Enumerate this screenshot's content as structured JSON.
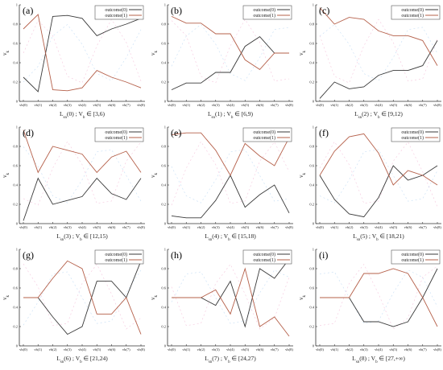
{
  "colors": {
    "outcome0": "#3a3a3a",
    "outcome1": "#b5604a",
    "background_guide": "#f3b8d4",
    "background_guide2": "#b8d6f3"
  },
  "chart_data": [
    {
      "type": "line",
      "panel_label": "(a)",
      "xlabel": "L_sn(0) ; V_b ∈ [3,6)",
      "ylabel": "v_k",
      "categories": [
        "vb(0)",
        "vb(1)",
        "vb(2)",
        "vb(3)",
        "vb(4)",
        "vb(5)",
        "vb(6)",
        "vb(7)",
        "vb(8)"
      ],
      "yticks": [
        "0",
        "0.2",
        "0.4",
        "0.6",
        "0.8",
        "1"
      ],
      "ylim": [
        0,
        1
      ],
      "legend": "top-right",
      "series": [
        {
          "name": "outcome(0)",
          "values": [
            0.25,
            0.1,
            0.88,
            0.89,
            0.86,
            0.68,
            0.75,
            0.8,
            0.86
          ]
        },
        {
          "name": "outcome(1)",
          "values": [
            0.75,
            0.9,
            0.12,
            0.11,
            0.14,
            0.32,
            0.25,
            0.2,
            0.14
          ]
        }
      ]
    },
    {
      "type": "line",
      "panel_label": "(b)",
      "xlabel": "L_sn(1) ; V_b ∈ [6,9)",
      "ylabel": "v_k",
      "categories": [
        "vb(0)",
        "vb(1)",
        "vb(2)",
        "vb(3)",
        "vb(4)",
        "vb(5)",
        "vb(6)",
        "vb(7)",
        "vb(8)"
      ],
      "yticks": [
        "0",
        "0.2",
        "0.4",
        "0.6",
        "0.8",
        "1"
      ],
      "ylim": [
        0,
        1
      ],
      "legend": "top-right",
      "series": [
        {
          "name": "outcome(0)",
          "values": [
            0.12,
            0.19,
            0.19,
            0.3,
            0.3,
            0.57,
            0.67,
            0.5,
            0.5
          ]
        },
        {
          "name": "outcome(1)",
          "values": [
            0.88,
            0.81,
            0.81,
            0.7,
            0.7,
            0.43,
            0.33,
            0.5,
            0.5
          ]
        }
      ]
    },
    {
      "type": "line",
      "panel_label": "(c)",
      "xlabel": "L_sn(2) ; V_b ∈ [9,12)",
      "ylabel": "v_k",
      "categories": [
        "vb(0)",
        "vb(1)",
        "vb(2)",
        "vb(3)",
        "vb(4)",
        "vb(5)",
        "vb(6)",
        "vb(7)",
        "vb(8)"
      ],
      "yticks": [
        "0",
        "0.2",
        "0.4",
        "0.6",
        "0.8",
        "1"
      ],
      "ylim": [
        0,
        1
      ],
      "legend": "top-right",
      "series": [
        {
          "name": "outcome(0)",
          "values": [
            0.03,
            0.2,
            0.13,
            0.15,
            0.27,
            0.32,
            0.32,
            0.37,
            0.63
          ]
        },
        {
          "name": "outcome(1)",
          "values": [
            0.97,
            0.8,
            0.87,
            0.85,
            0.73,
            0.68,
            0.68,
            0.63,
            0.37
          ]
        }
      ]
    },
    {
      "type": "line",
      "panel_label": "(d)",
      "xlabel": "L_sn(3) ; V_b ∈ [12,15)",
      "ylabel": "v_k",
      "categories": [
        "vb(0)",
        "vb(1)",
        "vb(2)",
        "vb(3)",
        "vb(4)",
        "vb(5)",
        "vb(6)",
        "vb(7)",
        "vb(8)"
      ],
      "yticks": [
        "0",
        "0.2",
        "0.4",
        "0.6",
        "0.8",
        "1"
      ],
      "ylim": [
        0,
        1
      ],
      "legend": "top-right",
      "series": [
        {
          "name": "outcome(0)",
          "values": [
            0.03,
            0.47,
            0.2,
            0.24,
            0.28,
            0.47,
            0.31,
            0.25,
            0.47
          ]
        },
        {
          "name": "outcome(1)",
          "values": [
            0.97,
            0.53,
            0.8,
            0.76,
            0.72,
            0.53,
            0.69,
            0.75,
            0.53
          ]
        }
      ]
    },
    {
      "type": "line",
      "panel_label": "(e)",
      "xlabel": "L_sn(4) ; V_b ∈ [15,18)",
      "ylabel": "v_k",
      "categories": [
        "vb(0)",
        "vb(1)",
        "vb(2)",
        "vb(3)",
        "vb(4)",
        "vb(5)",
        "vb(6)",
        "vb(7)",
        "vb(8)"
      ],
      "yticks": [
        "0",
        "0.2",
        "0.4",
        "0.6",
        "0.8",
        "1"
      ],
      "ylim": [
        0,
        1
      ],
      "legend": "top-right",
      "series": [
        {
          "name": "outcome(0)",
          "values": [
            0.08,
            0.06,
            0.06,
            0.24,
            0.5,
            0.17,
            0.3,
            0.4,
            0.11
          ]
        },
        {
          "name": "outcome(1)",
          "values": [
            0.92,
            0.94,
            0.94,
            0.76,
            0.5,
            0.83,
            0.7,
            0.6,
            0.89
          ]
        }
      ]
    },
    {
      "type": "line",
      "panel_label": "(f)",
      "xlabel": "L_sn(5) ; V_b ∈ [18,21)",
      "ylabel": "v_k",
      "categories": [
        "vb(0)",
        "vb(1)",
        "vb(2)",
        "vb(3)",
        "vb(4)",
        "vb(5)",
        "vb(6)",
        "vb(7)",
        "vb(8)"
      ],
      "yticks": [
        "0",
        "0.2",
        "0.4",
        "0.6",
        "0.8",
        "1"
      ],
      "ylim": [
        0,
        1
      ],
      "legend": "top-right",
      "series": [
        {
          "name": "outcome(0)",
          "values": [
            0.5,
            0.25,
            0.1,
            0.07,
            0.27,
            0.6,
            0.45,
            0.5,
            0.6
          ]
        },
        {
          "name": "outcome(1)",
          "values": [
            0.5,
            0.75,
            0.9,
            0.93,
            0.73,
            0.4,
            0.55,
            0.5,
            0.4
          ]
        }
      ]
    },
    {
      "type": "line",
      "panel_label": "(g)",
      "xlabel": "L_sn(6) ; V_b ∈ [21,24)",
      "ylabel": "v_k",
      "categories": [
        "vb(0)",
        "vb(1)",
        "vb(2)",
        "vb(3)",
        "vb(4)",
        "vb(5)",
        "vb(6)",
        "vb(7)",
        "vb(8)"
      ],
      "yticks": [
        "0",
        "0.2",
        "0.4",
        "0.6",
        "0.8",
        "1"
      ],
      "ylim": [
        0,
        1
      ],
      "legend": "top-right",
      "series": [
        {
          "name": "outcome(0)",
          "values": [
            0.5,
            0.5,
            0.3,
            0.12,
            0.2,
            0.67,
            0.67,
            0.5,
            0.88
          ]
        },
        {
          "name": "outcome(1)",
          "values": [
            0.5,
            0.5,
            0.7,
            0.88,
            0.8,
            0.33,
            0.33,
            0.5,
            0.12
          ]
        }
      ]
    },
    {
      "type": "line",
      "panel_label": "(h)",
      "xlabel": "L_sn(7) ; V_b ∈ [24,27)",
      "ylabel": "v_k",
      "categories": [
        "vb(0)",
        "vb(1)",
        "vb(2)",
        "vb(3)",
        "vb(4)",
        "vb(5)",
        "vb(6)",
        "vb(7)",
        "vb(8)"
      ],
      "yticks": [
        "0",
        "0.2",
        "0.4",
        "0.6",
        "0.8",
        "1"
      ],
      "ylim": [
        0,
        1
      ],
      "legend": "top-right",
      "series": [
        {
          "name": "outcome(0)",
          "values": [
            0.5,
            0.5,
            0.5,
            0.42,
            0.67,
            0.2,
            0.8,
            0.7,
            0.9
          ]
        },
        {
          "name": "outcome(1)",
          "values": [
            0.5,
            0.5,
            0.5,
            0.58,
            0.33,
            0.8,
            0.2,
            0.3,
            0.1
          ]
        }
      ]
    },
    {
      "type": "line",
      "panel_label": "(i)",
      "xlabel": "L_sn(8) ; V_b ∈ [27,+∞)",
      "ylabel": "v_k",
      "categories": [
        "vb(0)",
        "vb(1)",
        "vb(2)",
        "vb(3)",
        "vb(4)",
        "vb(5)",
        "vb(6)",
        "vb(7)",
        "vb(8)"
      ],
      "yticks": [
        "0",
        "0.2",
        "0.4",
        "0.6",
        "0.8",
        "1"
      ],
      "ylim": [
        0,
        1
      ],
      "legend": "top-right",
      "series": [
        {
          "name": "outcome(0)",
          "values": [
            0.5,
            0.5,
            0.5,
            0.25,
            0.25,
            0.2,
            0.25,
            0.5,
            0.8
          ]
        },
        {
          "name": "outcome(1)",
          "values": [
            0.5,
            0.5,
            0.5,
            0.75,
            0.75,
            0.8,
            0.75,
            0.5,
            0.2
          ]
        }
      ]
    }
  ]
}
